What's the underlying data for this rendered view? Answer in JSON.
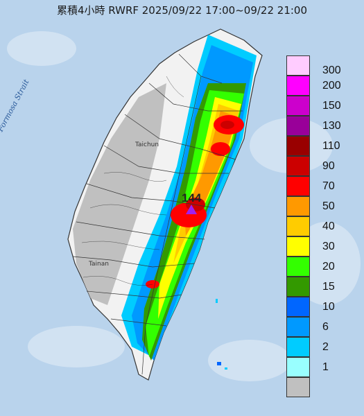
{
  "header": {
    "title": "累積4小時 RWRF 2025/09/22 17:00~09/22 21:00"
  },
  "map": {
    "sea_label": "Formosa Strait",
    "cities": {
      "taichung": "Taichun",
      "tainan": "Tainan"
    },
    "max_value": "144",
    "max_marker_icon": "triangle-marker-icon"
  },
  "legend": {
    "items": [
      {
        "label": "300",
        "color": "#ffccff"
      },
      {
        "label": "200",
        "color": "#ff00ff"
      },
      {
        "label": "150",
        "color": "#cc00cc"
      },
      {
        "label": "130",
        "color": "#990099"
      },
      {
        "label": "110",
        "color": "#990000"
      },
      {
        "label": "90",
        "color": "#cc0000"
      },
      {
        "label": "70",
        "color": "#ff0000"
      },
      {
        "label": "50",
        "color": "#ff9900"
      },
      {
        "label": "40",
        "color": "#ffcc00"
      },
      {
        "label": "30",
        "color": "#ffff00"
      },
      {
        "label": "20",
        "color": "#33ff00"
      },
      {
        "label": "15",
        "color": "#339900"
      },
      {
        "label": "10",
        "color": "#0066ff"
      },
      {
        "label": "6",
        "color": "#0099ff"
      },
      {
        "label": "2",
        "color": "#00ccff"
      },
      {
        "label": "1",
        "color": "#99ffff"
      },
      {
        "label": "",
        "color": "#c0c0c0"
      }
    ]
  }
}
